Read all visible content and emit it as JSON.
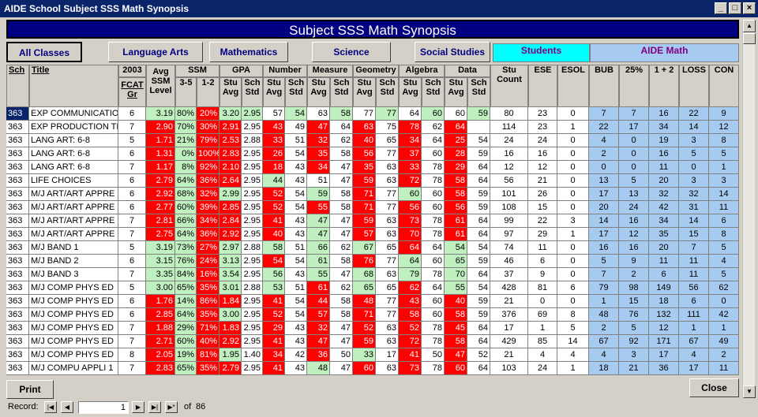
{
  "window": {
    "title": "AIDE School Subject SSS Math Synopsis"
  },
  "banner": "Subject SSS Math Synopsis",
  "tabs": {
    "all": "All Classes",
    "la": "Language Arts",
    "math": "Mathematics",
    "sci": "Science",
    "ss": "Social Studies",
    "students": "Students",
    "aide": "AIDE Math"
  },
  "headers": {
    "sch": "Sch",
    "title": "Title",
    "fcat_year": "2003",
    "fcat": "FCAT Gr",
    "avg": "Avg SSM Level",
    "ssm": "SSM",
    "ssm35": "3-5",
    "ssm12": "1-2",
    "gpa": "GPA",
    "number": "Number",
    "measure": "Measure",
    "geometry": "Geometry",
    "algebra": "Algebra",
    "data": "Data",
    "stu_avg": "Stu Avg",
    "sch_std": "Sch Std",
    "stu_count": "Stu Count",
    "ese": "ESE",
    "esol": "ESOL",
    "bub": "BUB",
    "p25": "25%",
    "one_two": "1 + 2",
    "loss": "LOSS",
    "con": "CON"
  },
  "rows": [
    {
      "sch": "363",
      "title": "EXP COMMUNICATIO",
      "gr": "6",
      "avg": "3.19",
      "s35": "80%",
      "s12": "20%",
      "gpa": "3.20",
      "gstd": "2.95",
      "num": "57",
      "nstd": "54",
      "mea": "63",
      "mstd": "58",
      "geo": "77",
      "gestd": "77",
      "alg": "64",
      "astd": "60",
      "dat": "60",
      "dstd": "59",
      "cnt": "80",
      "ese": "23",
      "esol": "0",
      "bub": "7",
      "p25": "7",
      "oneTwo": "16",
      "loss": "22",
      "con": "9",
      "k": "GGRGGWGWGWGWGWGW"
    },
    {
      "sch": "363",
      "title": "EXP PRODUCTION TI",
      "gr": "7",
      "avg": "2.90",
      "s35": "70%",
      "s12": "30%",
      "gpa": "2.91",
      "gstd": "2.95",
      "num": "43",
      "nstd": "49",
      "mea": "47",
      "mstd": "64",
      "geo": "63",
      "gestd": "75",
      "alg": "78",
      "astd": "62",
      "dat": "64",
      "dstd": "",
      "cnt": "114",
      "ese": "23",
      "esol": "1",
      "bub": "22",
      "p25": "17",
      "oneTwo": "34",
      "loss": "14",
      "con": "12",
      "k": "RGRRWRWRWRWRWRWW"
    },
    {
      "sch": "363",
      "title": "LANG ART: 6-8",
      "gr": "5",
      "avg": "1.71",
      "s35": "21%",
      "s12": "79%",
      "gpa": "2.53",
      "gstd": "2.88",
      "num": "33",
      "nstd": "51",
      "mea": "32",
      "mstd": "62",
      "geo": "40",
      "gestd": "65",
      "alg": "34",
      "astd": "64",
      "dat": "25",
      "dstd": "54",
      "cnt": "24",
      "ese": "24",
      "esol": "0",
      "bub": "4",
      "p25": "0",
      "oneTwo": "19",
      "loss": "3",
      "con": "8",
      "k": "RGRRWRWRWRWRWRWW"
    },
    {
      "sch": "363",
      "title": "LANG ART: 6-8",
      "gr": "6",
      "avg": "1.31",
      "s35": "0%",
      "s12": "100%",
      "gpa": "2.83",
      "gstd": "2.95",
      "num": "26",
      "nstd": "54",
      "mea": "35",
      "mstd": "58",
      "geo": "56",
      "gestd": "77",
      "alg": "37",
      "astd": "60",
      "dat": "28",
      "dstd": "59",
      "cnt": "16",
      "ese": "16",
      "esol": "0",
      "bub": "2",
      "p25": "0",
      "oneTwo": "16",
      "loss": "5",
      "con": "5",
      "k": "RGRRWRWRWRWRWRWW"
    },
    {
      "sch": "363",
      "title": "LANG ART: 6-8",
      "gr": "7",
      "avg": "1.17",
      "s35": "8%",
      "s12": "92%",
      "gpa": "2.10",
      "gstd": "2.95",
      "num": "18",
      "nstd": "43",
      "mea": "34",
      "mstd": "47",
      "geo": "35",
      "gestd": "63",
      "alg": "33",
      "astd": "78",
      "dat": "29",
      "dstd": "64",
      "cnt": "12",
      "ese": "12",
      "esol": "0",
      "bub": "0",
      "p25": "0",
      "oneTwo": "11",
      "loss": "0",
      "con": "1",
      "k": "RGRRWRWRWRWRWRWW"
    },
    {
      "sch": "363",
      "title": "LIFE CHOICES",
      "gr": "6",
      "avg": "2.79",
      "s35": "64%",
      "s12": "36%",
      "gpa": "2.64",
      "gstd": "2.95",
      "num": "44",
      "nstd": "43",
      "mea": "51",
      "mstd": "47",
      "geo": "59",
      "gestd": "63",
      "alg": "72",
      "astd": "78",
      "dat": "58",
      "dstd": "64",
      "cnt": "56",
      "ese": "21",
      "esol": "0",
      "bub": "13",
      "p25": "5",
      "oneTwo": "20",
      "loss": "3",
      "con": "3",
      "k": "RGRRWGWWWRWRWRWW"
    },
    {
      "sch": "363",
      "title": "M/J ART/ART APPRE",
      "gr": "6",
      "avg": "2.92",
      "s35": "68%",
      "s12": "32%",
      "gpa": "2.99",
      "gstd": "2.95",
      "num": "52",
      "nstd": "54",
      "mea": "59",
      "mstd": "58",
      "geo": "71",
      "gestd": "77",
      "alg": "60",
      "astd": "60",
      "dat": "58",
      "dstd": "59",
      "cnt": "101",
      "ese": "26",
      "esol": "0",
      "bub": "17",
      "p25": "13",
      "oneTwo": "32",
      "loss": "32",
      "con": "14",
      "k": "RGRGWRWGWRWGWRWW"
    },
    {
      "sch": "363",
      "title": "M/J ART/ART APPRE",
      "gr": "6",
      "avg": "2.77",
      "s35": "60%",
      "s12": "39%",
      "gpa": "2.85",
      "gstd": "2.95",
      "num": "52",
      "nstd": "54",
      "mea": "55",
      "mstd": "58",
      "geo": "71",
      "gestd": "77",
      "alg": "56",
      "astd": "60",
      "dat": "56",
      "dstd": "59",
      "cnt": "108",
      "ese": "15",
      "esol": "0",
      "bub": "20",
      "p25": "24",
      "oneTwo": "42",
      "loss": "31",
      "con": "11",
      "k": "RGRRWRWRWRWRWRWW"
    },
    {
      "sch": "363",
      "title": "M/J ART/ART APPRE",
      "gr": "7",
      "avg": "2.81",
      "s35": "66%",
      "s12": "34%",
      "gpa": "2.84",
      "gstd": "2.95",
      "num": "41",
      "nstd": "43",
      "mea": "47",
      "mstd": "47",
      "geo": "59",
      "gestd": "63",
      "alg": "73",
      "astd": "78",
      "dat": "61",
      "dstd": "64",
      "cnt": "99",
      "ese": "22",
      "esol": "3",
      "bub": "14",
      "p25": "16",
      "oneTwo": "34",
      "loss": "14",
      "con": "6",
      "k": "RGRRWRWGWRWRWRWW"
    },
    {
      "sch": "363",
      "title": "M/J ART/ART APPRE",
      "gr": "7",
      "avg": "2.75",
      "s35": "64%",
      "s12": "36%",
      "gpa": "2.92",
      "gstd": "2.95",
      "num": "40",
      "nstd": "43",
      "mea": "47",
      "mstd": "47",
      "geo": "57",
      "gestd": "63",
      "alg": "70",
      "astd": "78",
      "dat": "61",
      "dstd": "64",
      "cnt": "97",
      "ese": "29",
      "esol": "1",
      "bub": "17",
      "p25": "12",
      "oneTwo": "35",
      "loss": "15",
      "con": "8",
      "k": "RGRRWRWGWRWRWRWW"
    },
    {
      "sch": "363",
      "title": "M/J BAND 1",
      "gr": "5",
      "avg": "3.19",
      "s35": "73%",
      "s12": "27%",
      "gpa": "2.97",
      "gstd": "2.88",
      "num": "58",
      "nstd": "51",
      "mea": "66",
      "mstd": "62",
      "geo": "67",
      "gestd": "65",
      "alg": "64",
      "astd": "64",
      "dat": "54",
      "dstd": "54",
      "cnt": "74",
      "ese": "11",
      "esol": "0",
      "bub": "16",
      "p25": "16",
      "oneTwo": "20",
      "loss": "7",
      "con": "5",
      "k": "GGRGWGWGWGWRWGWW"
    },
    {
      "sch": "363",
      "title": "M/J BAND 2",
      "gr": "6",
      "avg": "3.15",
      "s35": "76%",
      "s12": "24%",
      "gpa": "3.13",
      "gstd": "2.95",
      "num": "54",
      "nstd": "54",
      "mea": "61",
      "mstd": "58",
      "geo": "76",
      "gestd": "77",
      "alg": "64",
      "astd": "60",
      "dat": "65",
      "dstd": "59",
      "cnt": "46",
      "ese": "6",
      "esol": "0",
      "bub": "5",
      "p25": "9",
      "oneTwo": "11",
      "loss": "11",
      "con": "4",
      "k": "GGRGWRWGWRWGWGWW"
    },
    {
      "sch": "363",
      "title": "M/J BAND 3",
      "gr": "7",
      "avg": "3.35",
      "s35": "84%",
      "s12": "16%",
      "gpa": "3.54",
      "gstd": "2.95",
      "num": "56",
      "nstd": "43",
      "mea": "55",
      "mstd": "47",
      "geo": "68",
      "gestd": "63",
      "alg": "79",
      "astd": "78",
      "dat": "70",
      "dstd": "64",
      "cnt": "37",
      "ese": "9",
      "esol": "0",
      "bub": "7",
      "p25": "2",
      "oneTwo": "6",
      "loss": "11",
      "con": "5",
      "k": "GGRGWGWGWGWGWGWW"
    },
    {
      "sch": "363",
      "title": "M/J COMP PHYS ED",
      "gr": "5",
      "avg": "3.00",
      "s35": "65%",
      "s12": "35%",
      "gpa": "3.01",
      "gstd": "2.88",
      "num": "53",
      "nstd": "51",
      "mea": "61",
      "mstd": "62",
      "geo": "65",
      "gestd": "65",
      "alg": "62",
      "astd": "64",
      "dat": "55",
      "dstd": "54",
      "cnt": "428",
      "ese": "81",
      "esol": "6",
      "bub": "79",
      "p25": "98",
      "oneTwo": "149",
      "loss": "56",
      "con": "62",
      "k": "GGRGWGWRWGWRWGWW"
    },
    {
      "sch": "363",
      "title": "M/J COMP PHYS ED",
      "gr": "6",
      "avg": "1.76",
      "s35": "14%",
      "s12": "86%",
      "gpa": "1.84",
      "gstd": "2.95",
      "num": "41",
      "nstd": "54",
      "mea": "44",
      "mstd": "58",
      "geo": "48",
      "gestd": "77",
      "alg": "43",
      "astd": "60",
      "dat": "40",
      "dstd": "59",
      "cnt": "21",
      "ese": "0",
      "esol": "0",
      "bub": "1",
      "p25": "15",
      "oneTwo": "18",
      "loss": "6",
      "con": "0",
      "k": "RGRRWRWRWRWRWRWW"
    },
    {
      "sch": "363",
      "title": "M/J COMP PHYS ED",
      "gr": "6",
      "avg": "2.85",
      "s35": "64%",
      "s12": "35%",
      "gpa": "3.00",
      "gstd": "2.95",
      "num": "52",
      "nstd": "54",
      "mea": "57",
      "mstd": "58",
      "geo": "71",
      "gestd": "77",
      "alg": "58",
      "astd": "60",
      "dat": "58",
      "dstd": "59",
      "cnt": "376",
      "ese": "69",
      "esol": "8",
      "bub": "48",
      "p25": "76",
      "oneTwo": "132",
      "loss": "111",
      "con": "42",
      "k": "RGRGWRWRWRWRWRWW"
    },
    {
      "sch": "363",
      "title": "M/J COMP PHYS ED",
      "gr": "7",
      "avg": "1.88",
      "s35": "29%",
      "s12": "71%",
      "gpa": "1.83",
      "gstd": "2.95",
      "num": "29",
      "nstd": "43",
      "mea": "32",
      "mstd": "47",
      "geo": "52",
      "gestd": "63",
      "alg": "52",
      "astd": "78",
      "dat": "45",
      "dstd": "64",
      "cnt": "17",
      "ese": "1",
      "esol": "5",
      "bub": "2",
      "p25": "5",
      "oneTwo": "12",
      "loss": "1",
      "con": "1",
      "k": "RGRRWRWRWRWRWRWW"
    },
    {
      "sch": "363",
      "title": "M/J COMP PHYS ED",
      "gr": "7",
      "avg": "2.71",
      "s35": "60%",
      "s12": "40%",
      "gpa": "2.92",
      "gstd": "2.95",
      "num": "41",
      "nstd": "43",
      "mea": "47",
      "mstd": "47",
      "geo": "59",
      "gestd": "63",
      "alg": "72",
      "astd": "78",
      "dat": "58",
      "dstd": "64",
      "cnt": "429",
      "ese": "85",
      "esol": "14",
      "bub": "67",
      "p25": "92",
      "oneTwo": "171",
      "loss": "67",
      "con": "49",
      "k": "RGRRWRWRWRWRWRWW"
    },
    {
      "sch": "363",
      "title": "M/J COMP PHYS ED",
      "gr": "8",
      "avg": "2.05",
      "s35": "19%",
      "s12": "81%",
      "gpa": "1.95",
      "gstd": "1.40",
      "num": "34",
      "nstd": "42",
      "mea": "36",
      "mstd": "50",
      "geo": "33",
      "gestd": "17",
      "alg": "41",
      "astd": "50",
      "dat": "47",
      "dstd": "52",
      "cnt": "21",
      "ese": "4",
      "esol": "4",
      "bub": "4",
      "p25": "3",
      "oneTwo": "17",
      "loss": "4",
      "con": "2",
      "k": "RGRGWRWRWGWRWRWW"
    },
    {
      "sch": "363",
      "title": "M/J COMPU APPLI 1",
      "gr": "7",
      "avg": "2.83",
      "s35": "65%",
      "s12": "35%",
      "gpa": "2.79",
      "gstd": "2.95",
      "num": "41",
      "nstd": "43",
      "mea": "48",
      "mstd": "47",
      "geo": "60",
      "gestd": "63",
      "alg": "73",
      "astd": "78",
      "dat": "60",
      "dstd": "64",
      "cnt": "103",
      "ese": "24",
      "esol": "1",
      "bub": "18",
      "p25": "21",
      "oneTwo": "36",
      "loss": "17",
      "con": "11",
      "k": "RGRRWRWGWRWRWRWW"
    }
  ],
  "buttons": {
    "print": "Print",
    "close": "Close"
  },
  "record": {
    "label": "Record:",
    "current": "1",
    "of": "of",
    "total": "86"
  }
}
